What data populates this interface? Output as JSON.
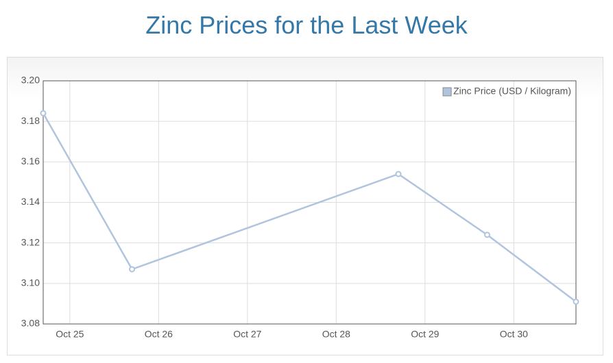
{
  "chart_data": {
    "type": "line",
    "title": "Zinc Prices for the Last Week",
    "x": [
      24.7,
      25.7,
      28.7,
      29.7,
      30.7
    ],
    "series": [
      {
        "name": "Zinc Price (USD / Kilogram)",
        "color": "#b0c4de",
        "values": [
          3.184,
          3.107,
          3.154,
          3.124,
          3.091
        ]
      }
    ],
    "xlim": [
      24.7,
      30.7
    ],
    "xticks": [
      {
        "value": 25,
        "label": "Oct 25"
      },
      {
        "value": 26,
        "label": "Oct 26"
      },
      {
        "value": 27,
        "label": "Oct 27"
      },
      {
        "value": 28,
        "label": "Oct 28"
      },
      {
        "value": 29,
        "label": "Oct 29"
      },
      {
        "value": 30,
        "label": "Oct 30"
      }
    ],
    "ylim": [
      3.08,
      3.2
    ],
    "yticks": [
      {
        "value": 3.08,
        "label": "3.08"
      },
      {
        "value": 3.1,
        "label": "3.10"
      },
      3.12,
      3.14,
      3.16,
      3.18,
      {
        "value": 3.2,
        "label": "3.20"
      }
    ],
    "grid": true,
    "legend": "top-right"
  }
}
